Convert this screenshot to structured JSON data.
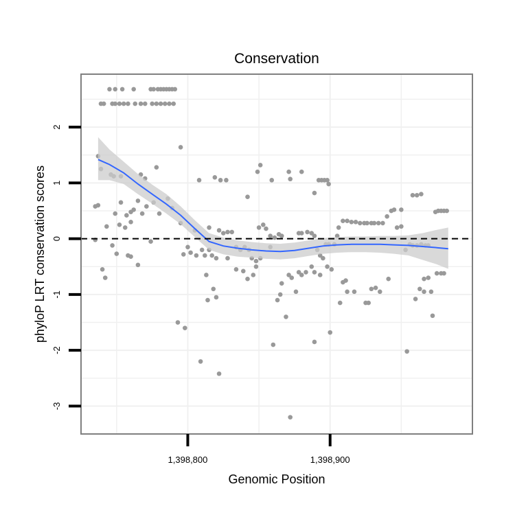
{
  "chart_data": {
    "type": "scatter",
    "title": "Conservation",
    "xlabel": "Genomic Position",
    "ylabel": "phyloP LRT conservation scores",
    "xlim": [
      1398725,
      1399000
    ],
    "ylim": [
      -3.5,
      2.95
    ],
    "x_ticks": [
      {
        "value": 1398800,
        "label": "1,398,800"
      },
      {
        "value": 1398900,
        "label": "1,398,900"
      }
    ],
    "y_ticks": [
      {
        "value": -3,
        "label": "-3"
      },
      {
        "value": -2,
        "label": "-2"
      },
      {
        "value": -1,
        "label": "-1"
      },
      {
        "value": 0,
        "label": "0"
      },
      {
        "value": 1,
        "label": "1"
      },
      {
        "value": 2,
        "label": "2"
      }
    ],
    "grid": true,
    "reference_line": {
      "y": 0,
      "style": "dashed"
    },
    "colors": {
      "points": "#999999",
      "smooth": "#3366ff",
      "band": "#cccccc",
      "frame": "#7f7f7f"
    },
    "points": [
      {
        "x": 1398745,
        "y": 2.68
      },
      {
        "x": 1398749,
        "y": 2.68
      },
      {
        "x": 1398754,
        "y": 2.68
      },
      {
        "x": 1398762,
        "y": 2.68
      },
      {
        "x": 1398774,
        "y": 2.68
      },
      {
        "x": 1398776,
        "y": 2.68
      },
      {
        "x": 1398779,
        "y": 2.68
      },
      {
        "x": 1398781,
        "y": 2.68
      },
      {
        "x": 1398783,
        "y": 2.68
      },
      {
        "x": 1398785,
        "y": 2.68
      },
      {
        "x": 1398787,
        "y": 2.68
      },
      {
        "x": 1398789,
        "y": 2.68
      },
      {
        "x": 1398791,
        "y": 2.68
      },
      {
        "x": 1398739,
        "y": 2.42
      },
      {
        "x": 1398741,
        "y": 2.42
      },
      {
        "x": 1398747,
        "y": 2.42
      },
      {
        "x": 1398749,
        "y": 2.42
      },
      {
        "x": 1398752,
        "y": 2.42
      },
      {
        "x": 1398755,
        "y": 2.42
      },
      {
        "x": 1398758,
        "y": 2.42
      },
      {
        "x": 1398763,
        "y": 2.42
      },
      {
        "x": 1398767,
        "y": 2.42
      },
      {
        "x": 1398770,
        "y": 2.42
      },
      {
        "x": 1398775,
        "y": 2.42
      },
      {
        "x": 1398778,
        "y": 2.42
      },
      {
        "x": 1398781,
        "y": 2.42
      },
      {
        "x": 1398784,
        "y": 2.42
      },
      {
        "x": 1398787,
        "y": 2.42
      },
      {
        "x": 1398790,
        "y": 2.42
      },
      {
        "x": 1398795,
        "y": 1.64
      },
      {
        "x": 1398737,
        "y": 1.48
      },
      {
        "x": 1398739,
        "y": 1.25
      },
      {
        "x": 1398746,
        "y": 1.15
      },
      {
        "x": 1398748,
        "y": 1.12
      },
      {
        "x": 1398753,
        "y": 1.12
      },
      {
        "x": 1398767,
        "y": 1.15
      },
      {
        "x": 1398770,
        "y": 1.08
      },
      {
        "x": 1398778,
        "y": 1.28
      },
      {
        "x": 1398795,
        "y": 0.28
      },
      {
        "x": 1398805,
        "y": 0.15
      },
      {
        "x": 1398808,
        "y": 1.05
      },
      {
        "x": 1398815,
        "y": 0.2
      },
      {
        "x": 1398813,
        "y": -0.65
      },
      {
        "x": 1398819,
        "y": 1.1
      },
      {
        "x": 1398823,
        "y": 1.05
      },
      {
        "x": 1398827,
        "y": 1.05
      },
      {
        "x": 1398842,
        "y": 0.75
      },
      {
        "x": 1398849,
        "y": 1.2
      },
      {
        "x": 1398851,
        "y": 1.32
      },
      {
        "x": 1398859,
        "y": 1.05
      },
      {
        "x": 1398871,
        "y": 1.2
      },
      {
        "x": 1398872,
        "y": 1.07
      },
      {
        "x": 1398880,
        "y": 1.2
      },
      {
        "x": 1398892,
        "y": 1.05
      },
      {
        "x": 1398894,
        "y": 1.05
      },
      {
        "x": 1398896,
        "y": 1.05
      },
      {
        "x": 1398898,
        "y": 1.05
      },
      {
        "x": 1398899,
        "y": 0.98
      },
      {
        "x": 1398889,
        "y": 0.82
      },
      {
        "x": 1398735,
        "y": 0.58
      },
      {
        "x": 1398737,
        "y": 0.6
      },
      {
        "x": 1398743,
        "y": 0.22
      },
      {
        "x": 1398749,
        "y": 0.45
      },
      {
        "x": 1398753,
        "y": 0.65
      },
      {
        "x": 1398757,
        "y": 0.42
      },
      {
        "x": 1398760,
        "y": 0.48
      },
      {
        "x": 1398762,
        "y": 0.52
      },
      {
        "x": 1398765,
        "y": 0.68
      },
      {
        "x": 1398768,
        "y": 0.45
      },
      {
        "x": 1398771,
        "y": 0.58
      },
      {
        "x": 1398776,
        "y": 0.65
      },
      {
        "x": 1398780,
        "y": 0.45
      },
      {
        "x": 1398786,
        "y": 0.72
      },
      {
        "x": 1398789,
        "y": 0.55
      },
      {
        "x": 1398752,
        "y": 0.25
      },
      {
        "x": 1398756,
        "y": 0.2
      },
      {
        "x": 1398760,
        "y": 0.3
      },
      {
        "x": 1398735,
        "y": -0.02
      },
      {
        "x": 1398740,
        "y": -0.55
      },
      {
        "x": 1398742,
        "y": -0.7
      },
      {
        "x": 1398747,
        "y": -0.12
      },
      {
        "x": 1398750,
        "y": -0.27
      },
      {
        "x": 1398758,
        "y": -0.3
      },
      {
        "x": 1398760,
        "y": -0.32
      },
      {
        "x": 1398765,
        "y": -0.47
      },
      {
        "x": 1398774,
        "y": -0.05
      },
      {
        "x": 1398797,
        "y": -0.28
      },
      {
        "x": 1398800,
        "y": -0.15
      },
      {
        "x": 1398802,
        "y": -0.25
      },
      {
        "x": 1398806,
        "y": -0.3
      },
      {
        "x": 1398810,
        "y": -0.2
      },
      {
        "x": 1398812,
        "y": -0.3
      },
      {
        "x": 1398815,
        "y": -0.2
      },
      {
        "x": 1398817,
        "y": -0.3
      },
      {
        "x": 1398820,
        "y": -0.35
      },
      {
        "x": 1398822,
        "y": 0.15
      },
      {
        "x": 1398825,
        "y": 0.1
      },
      {
        "x": 1398828,
        "y": 0.12
      },
      {
        "x": 1398831,
        "y": 0.12
      },
      {
        "x": 1398834,
        "y": -0.15
      },
      {
        "x": 1398837,
        "y": -0.2
      },
      {
        "x": 1398840,
        "y": -0.15
      },
      {
        "x": 1398843,
        "y": -0.2
      },
      {
        "x": 1398845,
        "y": -0.35
      },
      {
        "x": 1398848,
        "y": -0.4
      },
      {
        "x": 1398850,
        "y": 0.2
      },
      {
        "x": 1398853,
        "y": 0.25
      },
      {
        "x": 1398855,
        "y": 0.18
      },
      {
        "x": 1398858,
        "y": 0.05
      },
      {
        "x": 1398861,
        "y": 0.02
      },
      {
        "x": 1398864,
        "y": 0.08
      },
      {
        "x": 1398866,
        "y": 0.05
      },
      {
        "x": 1398793,
        "y": -1.5
      },
      {
        "x": 1398798,
        "y": -1.6
      },
      {
        "x": 1398809,
        "y": -2.2
      },
      {
        "x": 1398814,
        "y": -1.1
      },
      {
        "x": 1398818,
        "y": -0.9
      },
      {
        "x": 1398820,
        "y": -1.05
      },
      {
        "x": 1398822,
        "y": -2.42
      },
      {
        "x": 1398828,
        "y": -0.35
      },
      {
        "x": 1398834,
        "y": -0.55
      },
      {
        "x": 1398839,
        "y": -0.58
      },
      {
        "x": 1398842,
        "y": -0.72
      },
      {
        "x": 1398846,
        "y": -0.65
      },
      {
        "x": 1398848,
        "y": -0.5
      },
      {
        "x": 1398851,
        "y": -0.35
      },
      {
        "x": 1398858,
        "y": -0.15
      },
      {
        "x": 1398860,
        "y": -1.9
      },
      {
        "x": 1398863,
        "y": -1.1
      },
      {
        "x": 1398865,
        "y": -1.0
      },
      {
        "x": 1398866,
        "y": -0.8
      },
      {
        "x": 1398869,
        "y": -1.4
      },
      {
        "x": 1398871,
        "y": -0.65
      },
      {
        "x": 1398873,
        "y": -0.7
      },
      {
        "x": 1398876,
        "y": -0.95
      },
      {
        "x": 1398878,
        "y": -0.6
      },
      {
        "x": 1398880,
        "y": -0.65
      },
      {
        "x": 1398883,
        "y": -0.6
      },
      {
        "x": 1398872,
        "y": -3.2
      },
      {
        "x": 1398878,
        "y": 0.1
      },
      {
        "x": 1398880,
        "y": 0.1
      },
      {
        "x": 1398884,
        "y": 0.12
      },
      {
        "x": 1398887,
        "y": 0.1
      },
      {
        "x": 1398889,
        "y": 0.05
      },
      {
        "x": 1398891,
        "y": -0.2
      },
      {
        "x": 1398893,
        "y": -0.3
      },
      {
        "x": 1398895,
        "y": -0.35
      },
      {
        "x": 1398887,
        "y": -0.5
      },
      {
        "x": 1398889,
        "y": -0.6
      },
      {
        "x": 1398893,
        "y": -0.65
      },
      {
        "x": 1398898,
        "y": -0.5
      },
      {
        "x": 1398901,
        "y": -0.55
      },
      {
        "x": 1398903,
        "y": -0.1
      },
      {
        "x": 1398905,
        "y": 0.05
      },
      {
        "x": 1398897,
        "y": -0.1
      },
      {
        "x": 1398899,
        "y": -0.1
      },
      {
        "x": 1398906,
        "y": 0.2
      },
      {
        "x": 1398889,
        "y": -1.85
      },
      {
        "x": 1398900,
        "y": -1.68
      },
      {
        "x": 1398907,
        "y": -1.15
      },
      {
        "x": 1398909,
        "y": -0.78
      },
      {
        "x": 1398911,
        "y": -0.75
      },
      {
        "x": 1398912,
        "y": -0.95
      },
      {
        "x": 1398917,
        "y": -0.95
      },
      {
        "x": 1398925,
        "y": -1.15
      },
      {
        "x": 1398927,
        "y": -1.15
      },
      {
        "x": 1398929,
        "y": -0.9
      },
      {
        "x": 1398932,
        "y": -0.88
      },
      {
        "x": 1398935,
        "y": -0.95
      },
      {
        "x": 1398941,
        "y": -0.72
      },
      {
        "x": 1398909,
        "y": 0.32
      },
      {
        "x": 1398912,
        "y": 0.32
      },
      {
        "x": 1398915,
        "y": 0.3
      },
      {
        "x": 1398918,
        "y": 0.3
      },
      {
        "x": 1398921,
        "y": 0.28
      },
      {
        "x": 1398924,
        "y": 0.28
      },
      {
        "x": 1398926,
        "y": 0.28
      },
      {
        "x": 1398929,
        "y": 0.28
      },
      {
        "x": 1398931,
        "y": 0.28
      },
      {
        "x": 1398934,
        "y": 0.28
      },
      {
        "x": 1398937,
        "y": 0.28
      },
      {
        "x": 1398940,
        "y": 0.4
      },
      {
        "x": 1398943,
        "y": 0.5
      },
      {
        "x": 1398945,
        "y": 0.52
      },
      {
        "x": 1398950,
        "y": 0.52
      },
      {
        "x": 1398947,
        "y": 0.2
      },
      {
        "x": 1398950,
        "y": 0.22
      },
      {
        "x": 1398953,
        "y": -0.2
      },
      {
        "x": 1398956,
        "y": -0.1
      },
      {
        "x": 1398958,
        "y": 0.78
      },
      {
        "x": 1398961,
        "y": 0.78
      },
      {
        "x": 1398964,
        "y": 0.8
      },
      {
        "x": 1398958,
        "y": -0.12
      },
      {
        "x": 1398961,
        "y": -0.12
      },
      {
        "x": 1398964,
        "y": -0.1
      },
      {
        "x": 1398967,
        "y": -0.12
      },
      {
        "x": 1398969,
        "y": -0.12
      },
      {
        "x": 1398966,
        "y": -0.95
      },
      {
        "x": 1398960,
        "y": -1.08
      },
      {
        "x": 1398963,
        "y": -0.9
      },
      {
        "x": 1398966,
        "y": -0.72
      },
      {
        "x": 1398969,
        "y": -0.7
      },
      {
        "x": 1398971,
        "y": -0.95
      },
      {
        "x": 1398972,
        "y": -1.38
      },
      {
        "x": 1398974,
        "y": 0.48
      },
      {
        "x": 1398976,
        "y": 0.5
      },
      {
        "x": 1398978,
        "y": 0.5
      },
      {
        "x": 1398980,
        "y": 0.5
      },
      {
        "x": 1398982,
        "y": 0.5
      },
      {
        "x": 1398975,
        "y": -0.62
      },
      {
        "x": 1398978,
        "y": -0.62
      },
      {
        "x": 1398980,
        "y": -0.62
      },
      {
        "x": 1398954,
        "y": -2.02
      }
    ],
    "smooth": [
      {
        "x": 1398737,
        "y": 1.42,
        "lo": 1.05,
        "hi": 1.82
      },
      {
        "x": 1398745,
        "y": 1.33,
        "lo": 1.05,
        "hi": 1.6
      },
      {
        "x": 1398755,
        "y": 1.18,
        "lo": 0.98,
        "hi": 1.38
      },
      {
        "x": 1398765,
        "y": 0.98,
        "lo": 0.8,
        "hi": 1.16
      },
      {
        "x": 1398775,
        "y": 0.8,
        "lo": 0.63,
        "hi": 0.97
      },
      {
        "x": 1398785,
        "y": 0.62,
        "lo": 0.45,
        "hi": 0.8
      },
      {
        "x": 1398795,
        "y": 0.42,
        "lo": 0.26,
        "hi": 0.58
      },
      {
        "x": 1398805,
        "y": 0.18,
        "lo": 0.03,
        "hi": 0.33
      },
      {
        "x": 1398815,
        "y": -0.05,
        "lo": -0.2,
        "hi": 0.1
      },
      {
        "x": 1398825,
        "y": -0.13,
        "lo": -0.28,
        "hi": 0.02
      },
      {
        "x": 1398835,
        "y": -0.17,
        "lo": -0.32,
        "hi": -0.03
      },
      {
        "x": 1398845,
        "y": -0.2,
        "lo": -0.34,
        "hi": -0.06
      },
      {
        "x": 1398855,
        "y": -0.22,
        "lo": -0.36,
        "hi": -0.08
      },
      {
        "x": 1398865,
        "y": -0.23,
        "lo": -0.37,
        "hi": -0.09
      },
      {
        "x": 1398875,
        "y": -0.21,
        "lo": -0.35,
        "hi": -0.07
      },
      {
        "x": 1398885,
        "y": -0.17,
        "lo": -0.31,
        "hi": -0.03
      },
      {
        "x": 1398895,
        "y": -0.13,
        "lo": -0.27,
        "hi": 0.01
      },
      {
        "x": 1398905,
        "y": -0.11,
        "lo": -0.25,
        "hi": 0.03
      },
      {
        "x": 1398915,
        "y": -0.1,
        "lo": -0.24,
        "hi": 0.04
      },
      {
        "x": 1398925,
        "y": -0.1,
        "lo": -0.24,
        "hi": 0.04
      },
      {
        "x": 1398935,
        "y": -0.1,
        "lo": -0.25,
        "hi": 0.05
      },
      {
        "x": 1398945,
        "y": -0.11,
        "lo": -0.27,
        "hi": 0.05
      },
      {
        "x": 1398955,
        "y": -0.12,
        "lo": -0.3,
        "hi": 0.06
      },
      {
        "x": 1398965,
        "y": -0.14,
        "lo": -0.38,
        "hi": 0.1
      },
      {
        "x": 1398975,
        "y": -0.16,
        "lo": -0.46,
        "hi": 0.16
      },
      {
        "x": 1398983,
        "y": -0.18,
        "lo": -0.54,
        "hi": 0.2
      }
    ]
  }
}
